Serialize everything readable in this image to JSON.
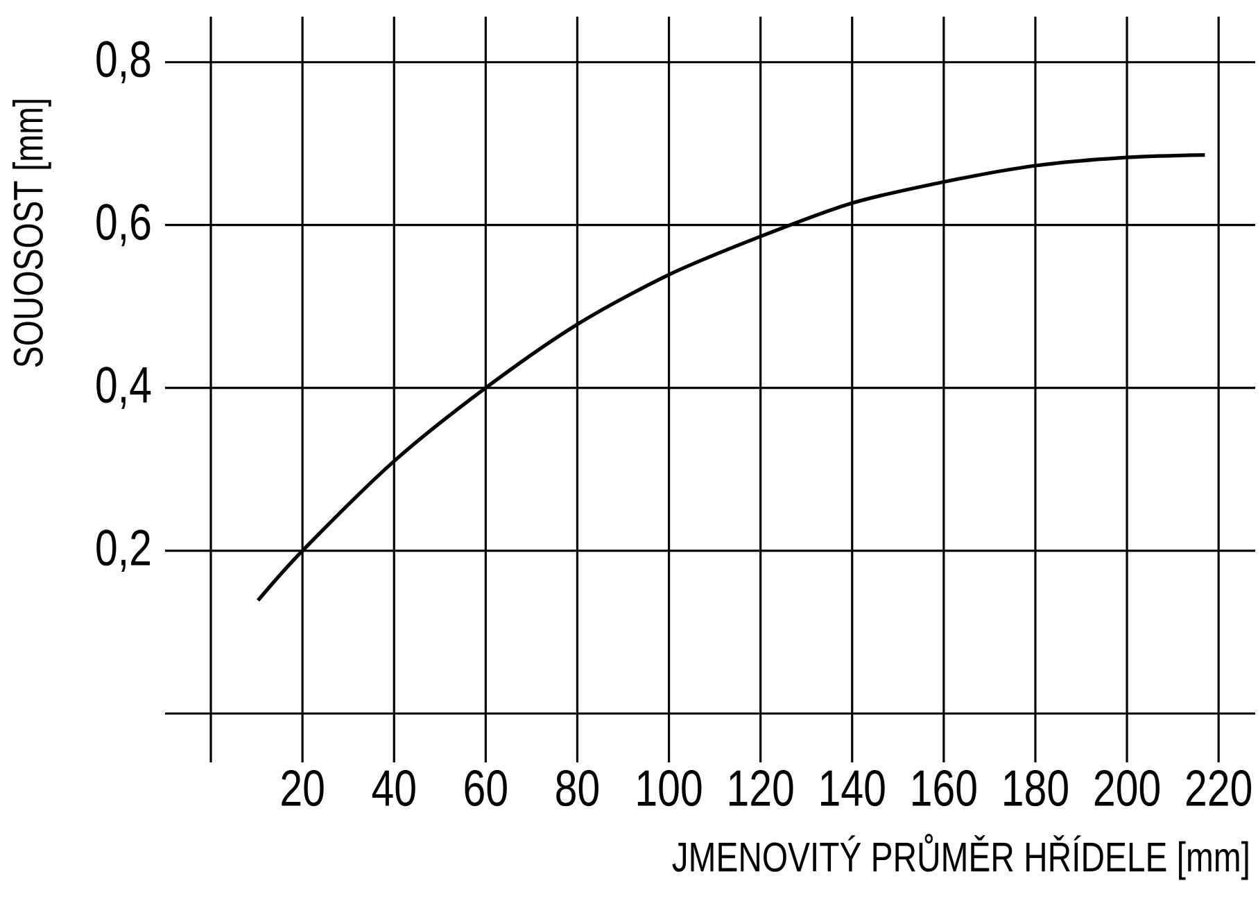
{
  "chart_data": {
    "type": "line",
    "xlabel": "JMENOVITÝ PRŮMĚR HŘÍDELE [mm]",
    "ylabel": "SOUOSOST [mm]",
    "x": [
      10.3,
      20,
      40,
      60,
      80,
      100,
      120,
      140,
      160,
      180,
      200,
      217
    ],
    "values": [
      0.139,
      0.2,
      0.31,
      0.4,
      0.478,
      0.539,
      0.586,
      0.627,
      0.653,
      0.673,
      0.683,
      0.686
    ],
    "color": "#000000",
    "line_style": "solid",
    "marker": "none",
    "grid": true,
    "xlim": [
      -10,
      228
    ],
    "ylim": [
      -0.06,
      0.856
    ],
    "xticks": [
      {
        "value": 0,
        "label": null
      },
      20,
      40,
      60,
      80,
      100,
      120,
      140,
      160,
      180,
      200,
      220
    ],
    "yticks": [
      {
        "value": 0,
        "label": null
      },
      {
        "value": 0.2,
        "label": "0,2"
      },
      {
        "value": 0.4,
        "label": "0,4"
      },
      {
        "value": 0.6,
        "label": "0,6"
      },
      {
        "value": 0.8,
        "label": "0,8"
      }
    ]
  }
}
